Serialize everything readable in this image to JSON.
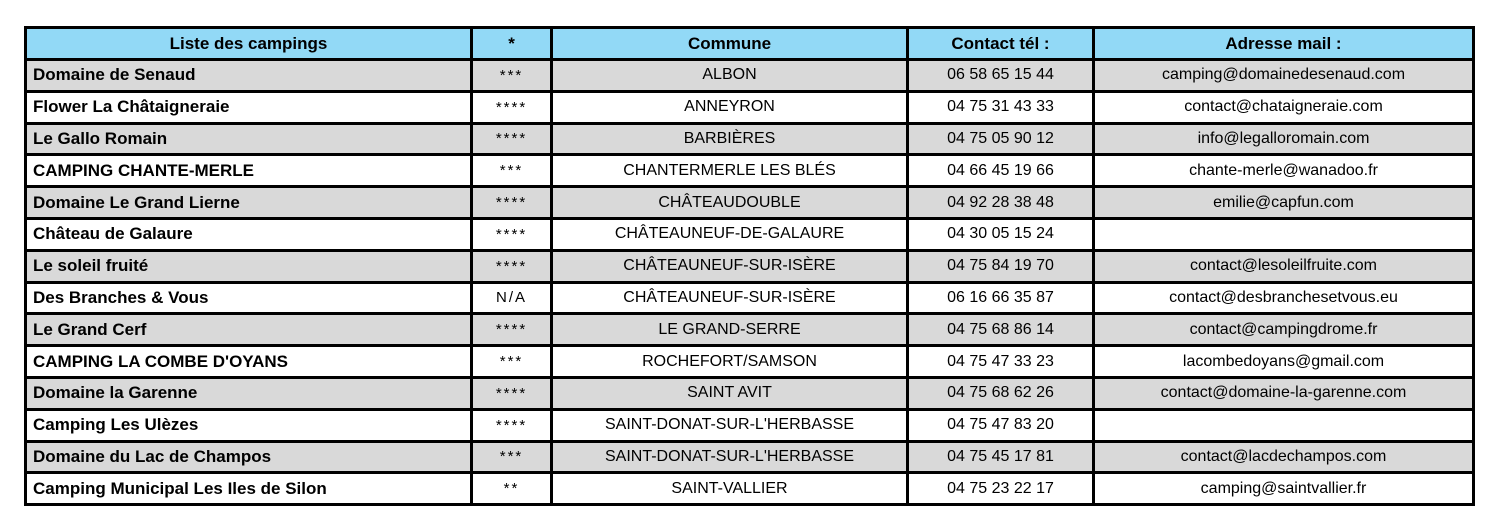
{
  "table": {
    "columns": [
      {
        "label": "Liste des campings"
      },
      {
        "label": "*"
      },
      {
        "label": "Commune"
      },
      {
        "label": "Contact tél :"
      },
      {
        "label": "Adresse mail :"
      }
    ],
    "rows": [
      [
        "Domaine de Senaud",
        "***",
        "ALBON",
        "06 58 65 15 44",
        "camping@domainedesenaud.com"
      ],
      [
        "Flower La Châtaigneraie",
        "****",
        "ANNEYRON",
        "04 75 31 43 33",
        "contact@chataigneraie.com"
      ],
      [
        "Le Gallo Romain",
        "****",
        "BARBIÈRES",
        "04 75 05 90 12",
        "info@legalloromain.com"
      ],
      [
        "CAMPING CHANTE-MERLE",
        "***",
        "CHANTERMERLE LES BLÉS",
        "04 66 45 19 66",
        "chante-merle@wanadoo.fr"
      ],
      [
        "Domaine Le Grand Lierne",
        "****",
        "CHÂTEAUDOUBLE",
        "04 92 28 38 48",
        "emilie@capfun.com"
      ],
      [
        "Château de Galaure",
        "****",
        "CHÂTEAUNEUF-DE-GALAURE",
        "04 30 05 15 24",
        ""
      ],
      [
        "Le soleil fruité",
        "****",
        "CHÂTEAUNEUF-SUR-ISÈRE",
        "04 75 84 19 70",
        "contact@lesoleilfruite.com"
      ],
      [
        "Des Branches & Vous",
        "N/A",
        "CHÂTEAUNEUF-SUR-ISÈRE",
        "06 16 66 35 87",
        "contact@desbranchesetvous.eu"
      ],
      [
        "Le Grand Cerf",
        "****",
        "LE GRAND-SERRE",
        "04 75 68 86 14",
        "contact@campingdrome.fr"
      ],
      [
        "CAMPING LA COMBE D'OYANS",
        "***",
        "ROCHEFORT/SAMSON",
        "04 75 47 33 23",
        "lacombedoyans@gmail.com"
      ],
      [
        "Domaine la Garenne",
        "****",
        "SAINT AVIT",
        "04 75 68 62 26",
        "contact@domaine-la-garenne.com"
      ],
      [
        "Camping Les Ulèzes",
        "****",
        "SAINT-DONAT-SUR-L'HERBASSE",
        "04 75 47 83 20",
        ""
      ],
      [
        "Domaine du Lac de Champos",
        "***",
        "SAINT-DONAT-SUR-L'HERBASSE",
        "04 75 45 17 81",
        "contact@lacdechampos.com"
      ],
      [
        "Camping Municipal Les Iles de Silon",
        "**",
        "SAINT-VALLIER",
        "04 75 23 22 17",
        "camping@saintvallier.fr"
      ]
    ],
    "colors": {
      "header_bg": "#92d9f6",
      "row_bg": "#ffffff",
      "row_alt_bg": "#d9d9d9",
      "border": "#000000"
    }
  }
}
